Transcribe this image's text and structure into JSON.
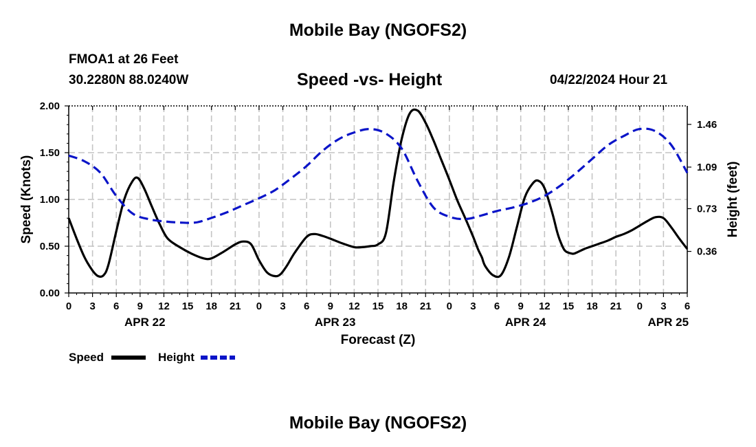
{
  "header": {
    "title": "Mobile Bay (NGOFS2)",
    "station": "FMOA1 at 26 Feet",
    "coords": "30.2280N  88.0240W",
    "subtitle": "Speed -vs- Height",
    "datetime": "04/22/2024 Hour 21"
  },
  "footer": {
    "title": "Mobile Bay (NGOFS2)"
  },
  "colors": {
    "speed": "#000000",
    "height": "#0a14c8",
    "grid": "#c4c4c4"
  },
  "chart_data": {
    "type": "line",
    "title": "Speed -vs- Height",
    "xlabel": "Forecast (Z)",
    "ylabel": "Speed (Knots)",
    "y2label": "Height (feet)",
    "x_unit": "hours since APR 22 00Z",
    "xlim": [
      0,
      78
    ],
    "ylim": [
      0,
      2.0
    ],
    "y2lim": [
      0,
      1.62
    ],
    "x_ticks": [
      0,
      3,
      6,
      9,
      12,
      15,
      18,
      21,
      24,
      27,
      30,
      33,
      36,
      39,
      42,
      45,
      48,
      51,
      54,
      57,
      60,
      63,
      66,
      69,
      72,
      75,
      78
    ],
    "x_tick_labels": [
      "0",
      "3",
      "6",
      "9",
      "12",
      "15",
      "18",
      "21",
      "0",
      "3",
      "6",
      "9",
      "12",
      "15",
      "18",
      "21",
      "0",
      "3",
      "6",
      "9",
      "12",
      "15",
      "18",
      "21",
      "0",
      "3",
      "6"
    ],
    "y_ticks": [
      0,
      0.5,
      1.0,
      1.5,
      2.0
    ],
    "y_tick_labels": [
      "0.00",
      "0.50",
      "1.00",
      "1.50",
      "2.00"
    ],
    "y2_ticks": [
      0.36,
      0.73,
      1.09,
      1.46
    ],
    "y2_tick_labels": [
      "0.36",
      "0.73",
      "1.09",
      "1.46"
    ],
    "date_labels": [
      {
        "x": 9.6,
        "label": "APR 22"
      },
      {
        "x": 33.6,
        "label": "APR 23"
      },
      {
        "x": 57.6,
        "label": "APR 24"
      },
      {
        "x": 75.6,
        "label": "APR 25"
      }
    ],
    "legend": [
      {
        "name": "Speed",
        "style": "solid"
      },
      {
        "name": "Height",
        "style": "dashed"
      }
    ],
    "series": [
      {
        "name": "Speed",
        "axis": "left",
        "units": "Knots",
        "x": [
          0,
          1,
          2,
          3,
          3.7,
          4.4,
          5,
          6,
          7,
          8,
          8.7,
          9.5,
          10.5,
          11.5,
          12.5,
          14,
          15.5,
          17,
          18,
          19.5,
          21,
          22,
          23,
          24,
          25,
          26,
          26.7,
          27.5,
          28.5,
          30,
          31,
          32,
          33,
          34.5,
          36,
          37,
          38,
          39,
          40,
          41,
          42,
          43,
          44,
          45,
          46,
          47,
          48,
          49,
          50,
          51,
          51.6,
          52.1,
          52.5,
          53.5,
          54.5,
          55.5,
          56.5,
          57.5,
          58.5,
          59.2,
          60,
          61,
          61.6,
          62,
          62.6,
          63.5,
          64,
          65,
          66,
          67,
          68,
          69,
          70,
          71,
          72,
          73,
          74,
          75,
          76,
          77,
          78
        ],
        "y": [
          0.8,
          0.58,
          0.38,
          0.24,
          0.18,
          0.19,
          0.3,
          0.66,
          1.0,
          1.19,
          1.23,
          1.12,
          0.92,
          0.73,
          0.58,
          0.49,
          0.42,
          0.37,
          0.37,
          0.44,
          0.52,
          0.55,
          0.52,
          0.35,
          0.22,
          0.18,
          0.2,
          0.29,
          0.43,
          0.6,
          0.63,
          0.61,
          0.58,
          0.53,
          0.49,
          0.49,
          0.5,
          0.52,
          0.64,
          1.2,
          1.65,
          1.92,
          1.95,
          1.82,
          1.63,
          1.42,
          1.21,
          0.99,
          0.8,
          0.6,
          0.47,
          0.38,
          0.29,
          0.19,
          0.19,
          0.38,
          0.7,
          1.02,
          1.17,
          1.2,
          1.12,
          0.85,
          0.65,
          0.55,
          0.45,
          0.42,
          0.43,
          0.47,
          0.5,
          0.53,
          0.56,
          0.6,
          0.63,
          0.67,
          0.72,
          0.77,
          0.81,
          0.8,
          0.7,
          0.58,
          0.47
        ]
      },
      {
        "name": "Height",
        "axis": "right",
        "units": "feet",
        "x": [
          0,
          2,
          4,
          6,
          8,
          10,
          12,
          14,
          16,
          18,
          20,
          22,
          24,
          26,
          28,
          30,
          32,
          34,
          36,
          38,
          40,
          42,
          44,
          46,
          48,
          50,
          52,
          54,
          56,
          58,
          60,
          62,
          64,
          66,
          68,
          70,
          72,
          74,
          76,
          78
        ],
        "y": [
          1.19,
          1.14,
          1.04,
          0.84,
          0.69,
          0.64,
          0.62,
          0.61,
          0.61,
          0.65,
          0.7,
          0.76,
          0.82,
          0.89,
          0.99,
          1.1,
          1.23,
          1.33,
          1.39,
          1.42,
          1.38,
          1.25,
          0.97,
          0.74,
          0.66,
          0.64,
          0.67,
          0.71,
          0.74,
          0.78,
          0.84,
          0.93,
          1.04,
          1.16,
          1.28,
          1.36,
          1.42,
          1.4,
          1.28,
          1.04
        ]
      }
    ]
  }
}
